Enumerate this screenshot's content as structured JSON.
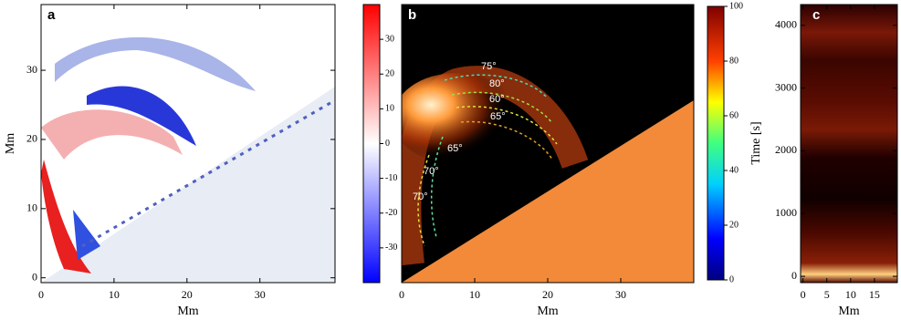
{
  "chart_data": [
    {
      "type": "heatmap",
      "panel_label": "a",
      "xlabel": "Mm",
      "ylabel": "Mm",
      "xlim": [
        0,
        40.3
      ],
      "ylim": [
        -0.7,
        39.5
      ],
      "xticks": [
        0,
        10,
        20,
        30
      ],
      "yticks": [
        0,
        10,
        20,
        30
      ],
      "colorbar": {
        "lim": [
          -40,
          40
        ],
        "ticks": [
          -30,
          -20,
          -10,
          0,
          10,
          20,
          30
        ]
      }
    },
    {
      "type": "heatmap",
      "panel_label": "b",
      "xlabel": "Mm",
      "xlim": [
        0,
        40
      ],
      "xticks": [
        0,
        10,
        20,
        30
      ],
      "colorbar": {
        "label": "Time [s]",
        "lim": [
          0,
          100
        ],
        "ticks": [
          0,
          20,
          40,
          60,
          80,
          100
        ]
      },
      "annotations": [
        "75°",
        "80°",
        "60°",
        "65°",
        "65°",
        "70°",
        "70°"
      ]
    },
    {
      "type": "heatmap",
      "panel_label": "c",
      "xlabel": "Mm",
      "xlim": [
        -0.5,
        19.8
      ],
      "ylim": [
        -100,
        4330
      ],
      "xticks": [
        0,
        5,
        10,
        15
      ],
      "yticks": [
        0,
        1000,
        2000,
        3000,
        4000
      ]
    }
  ]
}
